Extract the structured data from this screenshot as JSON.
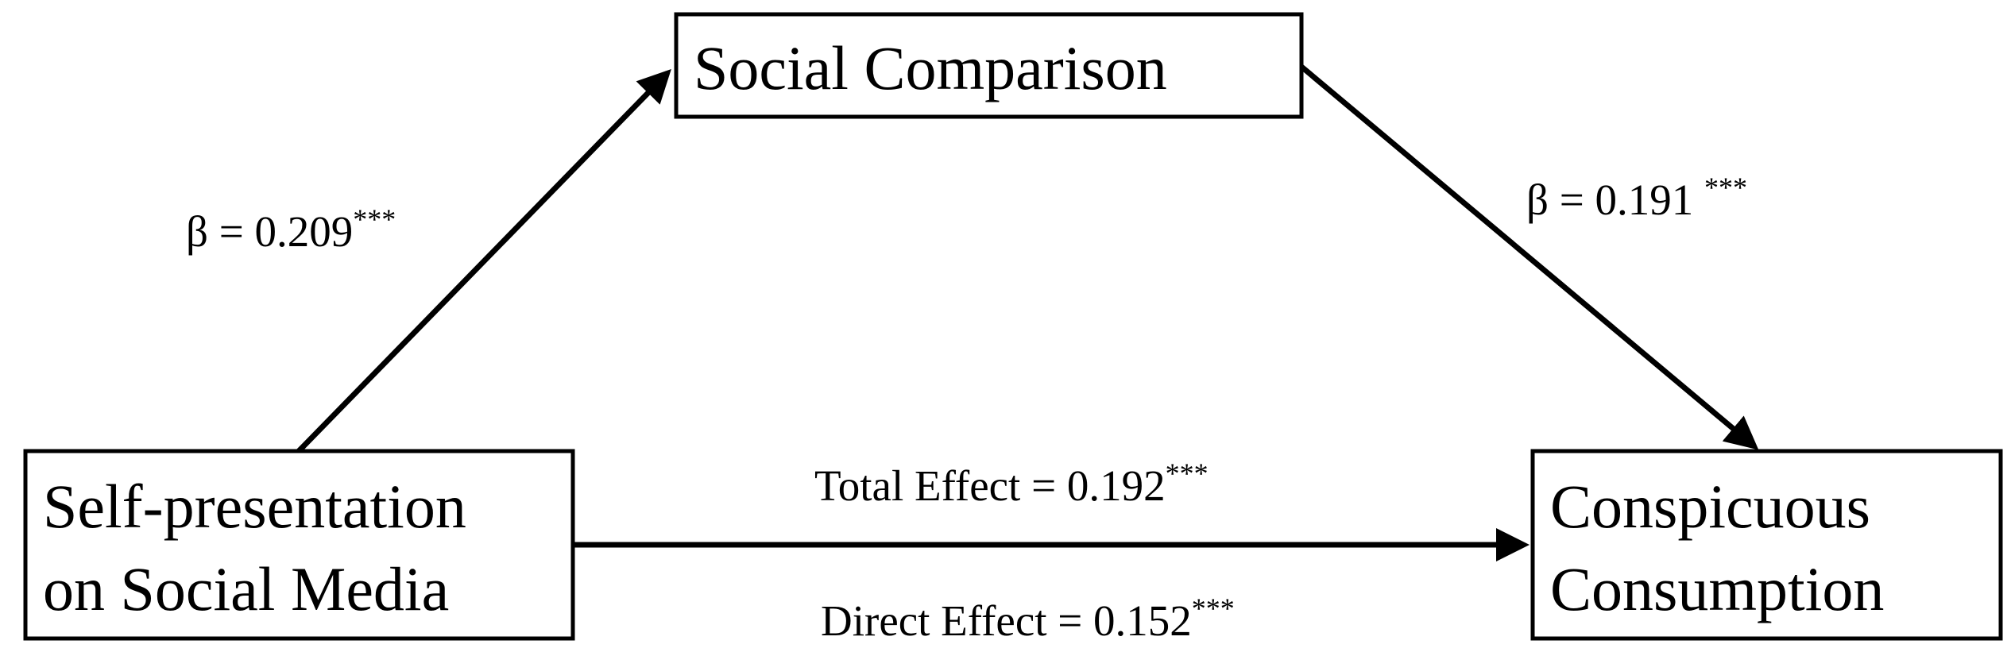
{
  "nodes": [
    {
      "label": [
        "Social Comparison"
      ]
    },
    {
      "label": [
        "Self-presentation",
        "on Social Media"
      ]
    },
    {
      "label": [
        "Conspicuous",
        "Consumption"
      ]
    }
  ],
  "edges": [
    {
      "label": "β = 0.209",
      "sig": "***"
    },
    {
      "label": "β = 0.191 ",
      "sig": "***"
    },
    {
      "label": "Total Effect = 0.192",
      "sig": "***"
    },
    {
      "label": "Direct Effect = 0.152",
      "sig": "***"
    }
  ]
}
